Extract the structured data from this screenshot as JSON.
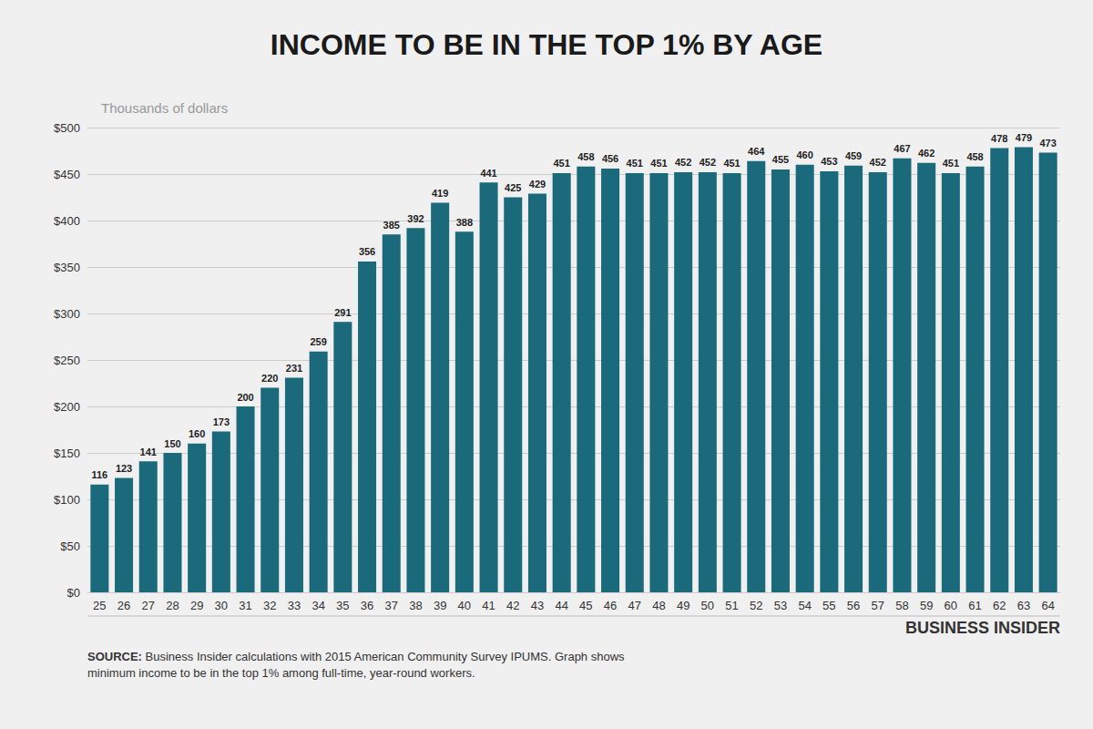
{
  "chart_data": {
    "type": "bar",
    "title": "INCOME TO BE IN THE TOP 1% BY AGE",
    "subtitle": "Thousands of dollars",
    "categories": [
      "25",
      "26",
      "27",
      "28",
      "29",
      "30",
      "31",
      "32",
      "33",
      "34",
      "35",
      "36",
      "37",
      "38",
      "39",
      "40",
      "41",
      "42",
      "43",
      "44",
      "45",
      "46",
      "47",
      "48",
      "49",
      "50",
      "51",
      "52",
      "53",
      "54",
      "55",
      "56",
      "57",
      "58",
      "59",
      "60",
      "61",
      "62",
      "63",
      "64"
    ],
    "values": [
      116,
      123,
      141,
      150,
      160,
      173,
      200,
      220,
      231,
      259,
      291,
      356,
      385,
      392,
      419,
      388,
      441,
      425,
      429,
      451,
      458,
      456,
      451,
      451,
      452,
      452,
      451,
      464,
      455,
      460,
      453,
      459,
      452,
      467,
      462,
      451,
      458,
      478,
      479,
      473
    ],
    "color": "#1b6a7b",
    "ylim": [
      0,
      500
    ],
    "yticks": [
      {
        "value": 0,
        "label": "$0"
      },
      {
        "value": 50,
        "label": "$50"
      },
      {
        "value": 100,
        "label": "$100"
      },
      {
        "value": 150,
        "label": "$150"
      },
      {
        "value": 200,
        "label": "$200"
      },
      {
        "value": 250,
        "label": "$250"
      },
      {
        "value": 300,
        "label": "$300"
      },
      {
        "value": 350,
        "label": "$350"
      },
      {
        "value": 400,
        "label": "$400"
      },
      {
        "value": 450,
        "label": "$450"
      },
      {
        "value": 500,
        "label": "$500"
      }
    ],
    "grid": true,
    "data_labels": true,
    "annotations": [
      "SOURCE:",
      " Business Insider calculations with 2015 American Community Survey IPUMS. Graph shows\nminimum income to be in the top 1% among full-time, year-round workers.",
      "BUSINESS INSIDER"
    ]
  }
}
